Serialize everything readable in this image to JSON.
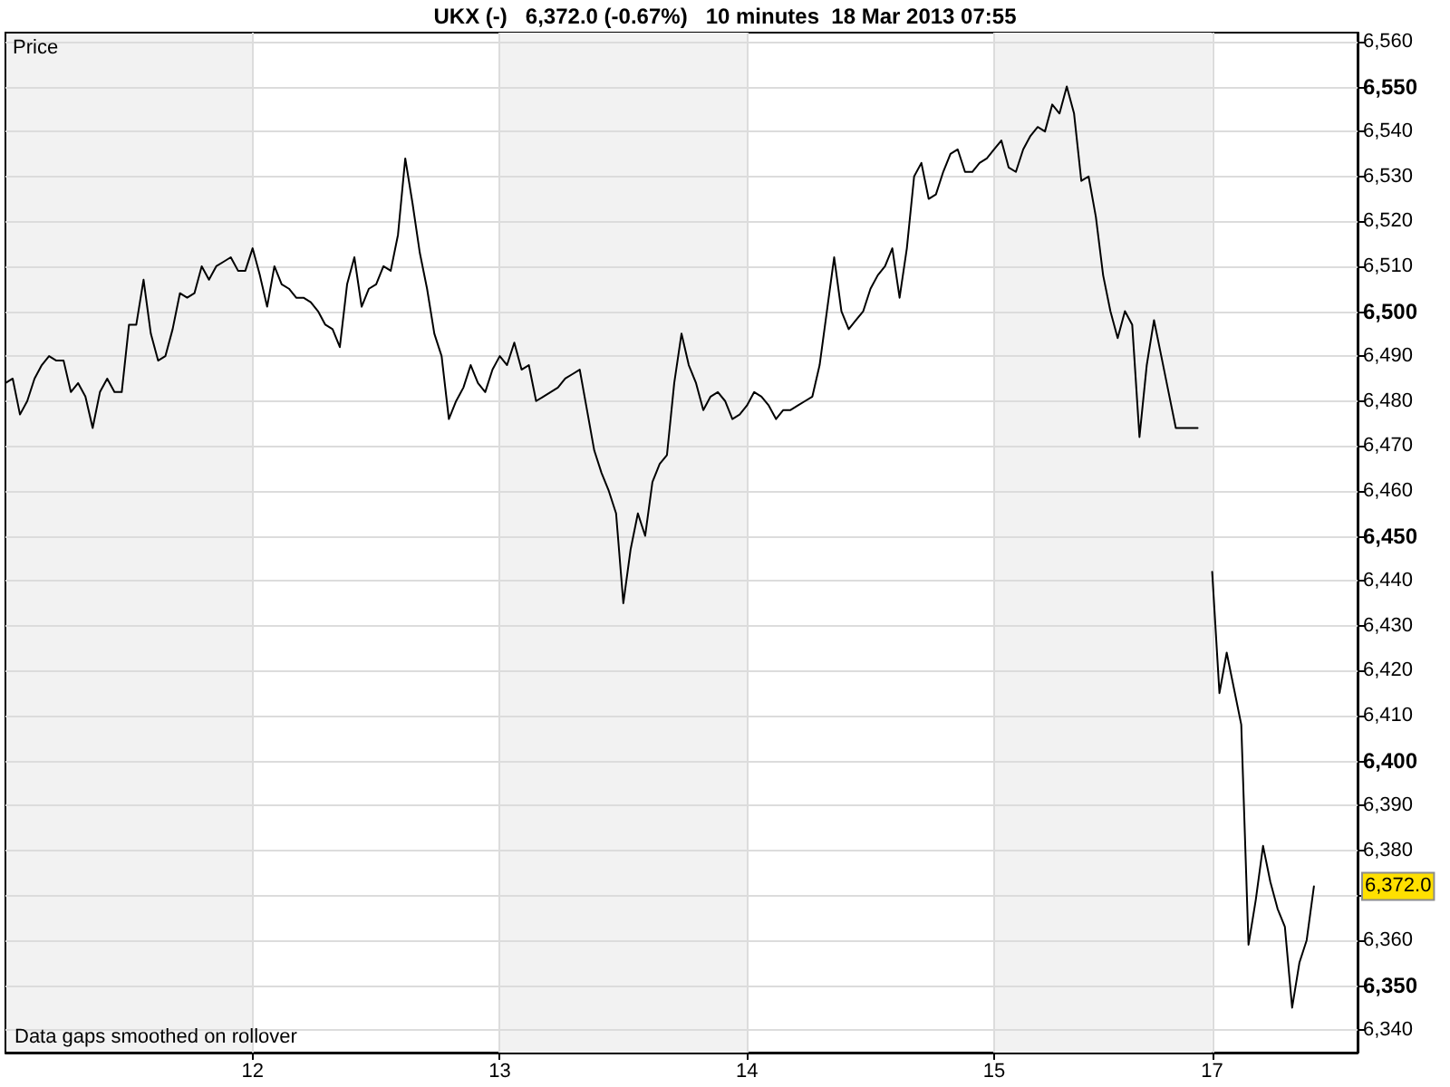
{
  "chart_data": {
    "type": "line",
    "title": "UKX (-)   6,372.0 (-0.67%)   10 minutes  18 Mar 2013 07:55",
    "ylabel": "Price",
    "color": "#000000",
    "categories": [
      null,
      null,
      null,
      null,
      null,
      null,
      null,
      null,
      null,
      null,
      null,
      null,
      null,
      null,
      null,
      null,
      null,
      null,
      null,
      null,
      null,
      null,
      null,
      null,
      null,
      null,
      null,
      null,
      null,
      null,
      null,
      null,
      null,
      null,
      "12",
      null,
      null,
      null,
      null,
      null,
      null,
      null,
      null,
      null,
      null,
      null,
      null,
      null,
      null,
      null,
      null,
      null,
      null,
      null,
      null,
      null,
      null,
      null,
      null,
      null,
      null,
      null,
      null,
      null,
      null,
      null,
      null,
      null,
      "13",
      null,
      null,
      null,
      null,
      null,
      null,
      null,
      null,
      null,
      null,
      null,
      null,
      null,
      null,
      null,
      null,
      null,
      null,
      null,
      null,
      null,
      null,
      null,
      null,
      null,
      null,
      null,
      null,
      null,
      null,
      null,
      null,
      null,
      "14",
      null,
      null,
      null,
      null,
      null,
      null,
      null,
      null,
      null,
      null,
      null,
      null,
      null,
      null,
      null,
      null,
      null,
      null,
      null,
      null,
      null,
      null,
      null,
      null,
      null,
      null,
      null,
      null,
      null,
      null,
      null,
      null,
      null,
      "15",
      null,
      null,
      null,
      null,
      null,
      null,
      null,
      null,
      null,
      null,
      null,
      null,
      null,
      null,
      null,
      null,
      null,
      null,
      null,
      null,
      null,
      null,
      null,
      null,
      null,
      null,
      null,
      null,
      null,
      "17",
      null,
      null,
      null,
      null,
      null,
      null,
      null,
      null,
      null,
      null,
      null,
      null,
      null,
      null,
      null,
      null,
      null,
      null,
      null,
      null
    ],
    "values": [
      6484,
      6485,
      6477,
      6480,
      6485,
      6488,
      6490,
      6489,
      6489,
      6482,
      6484,
      6481,
      6474,
      6482,
      6485,
      6482,
      6482,
      6497,
      6497,
      6507,
      6495,
      6489,
      6490,
      6496,
      6504,
      6503,
      6504,
      6510,
      6507,
      6510,
      6511,
      6512,
      6509,
      6509,
      6514,
      6508,
      6501,
      6510,
      6506,
      6505,
      6503,
      6503,
      6502,
      6500,
      6497,
      6496,
      6492,
      6506,
      6512,
      6501,
      6505,
      6506,
      6510,
      6509,
      6517,
      6534,
      6524,
      6513,
      6505,
      6495,
      6490,
      6476,
      6480,
      6483,
      6488,
      6484,
      6482,
      6487,
      6490,
      6488,
      6493,
      6487,
      6488,
      6480,
      6481,
      6482,
      6483,
      6485,
      6486,
      6487,
      6478,
      6469,
      6464,
      6460,
      6455,
      6435,
      6447,
      6455,
      6450,
      6462,
      6466,
      6468,
      6484,
      6495,
      6488,
      6484,
      6478,
      6481,
      6482,
      6480,
      6476,
      6477,
      6479,
      6482,
      6481,
      6479,
      6476,
      6478,
      6478,
      6479,
      6480,
      6481,
      6488,
      6500,
      6512,
      6500,
      6496,
      6498,
      6500,
      6505,
      6508,
      6510,
      6514,
      6503,
      6514,
      6530,
      6533,
      6525,
      6526,
      6531,
      6535,
      6536,
      6531,
      6531,
      6533,
      6534,
      6536,
      6538,
      6532,
      6531,
      6536,
      6539,
      6541,
      6540,
      6546,
      6544,
      6550,
      6544,
      6529,
      6530,
      6521,
      6508,
      6500,
      6494,
      6500,
      6497,
      6472,
      6488,
      6498,
      6490,
      6482,
      6474,
      6474,
      6474,
      6474,
      null,
      6442,
      6415,
      6424,
      6416,
      6408,
      6359,
      6369,
      6381,
      6373,
      6367,
      6363,
      6345,
      6355,
      6360,
      6372,
      null,
      null,
      null,
      null,
      null,
      null
    ],
    "ylim": [
      6335,
      6562
    ],
    "yticks": [
      {
        "value": 6340,
        "label": "6,340"
      },
      {
        "value": 6350,
        "label": "6,350"
      },
      {
        "value": 6360,
        "label": "6,360"
      },
      {
        "value": 6370,
        "label": null
      },
      {
        "value": 6380,
        "label": "6,380"
      },
      {
        "value": 6390,
        "label": "6,390"
      },
      {
        "value": 6400,
        "label": "6,400"
      },
      {
        "value": 6410,
        "label": "6,410"
      },
      {
        "value": 6420,
        "label": "6,420"
      },
      {
        "value": 6430,
        "label": "6,430"
      },
      {
        "value": 6440,
        "label": "6,440"
      },
      {
        "value": 6450,
        "label": "6,450"
      },
      {
        "value": 6460,
        "label": "6,460"
      },
      {
        "value": 6470,
        "label": "6,470"
      },
      {
        "value": 6480,
        "label": "6,480"
      },
      {
        "value": 6490,
        "label": "6,490"
      },
      {
        "value": 6500,
        "label": "6,500"
      },
      {
        "value": 6510,
        "label": "6,510"
      },
      {
        "value": 6520,
        "label": "6,520"
      },
      {
        "value": 6530,
        "label": "6,530"
      },
      {
        "value": 6540,
        "label": "6,540"
      },
      {
        "value": 6550,
        "label": "6,550"
      },
      {
        "value": 6560,
        "label": "6,560"
      }
    ],
    "bands": [
      {
        "axis": "x",
        "from": "13",
        "to": "14",
        "color": "#f2f2f2"
      },
      {
        "axis": "x",
        "from": "15",
        "to": "17",
        "color": "#f2f2f2"
      }
    ],
    "annotations": [
      {
        "text": "6,372.0",
        "y": 6372
      },
      "Data gaps smoothed on rollover"
    ],
    "grid": true
  }
}
